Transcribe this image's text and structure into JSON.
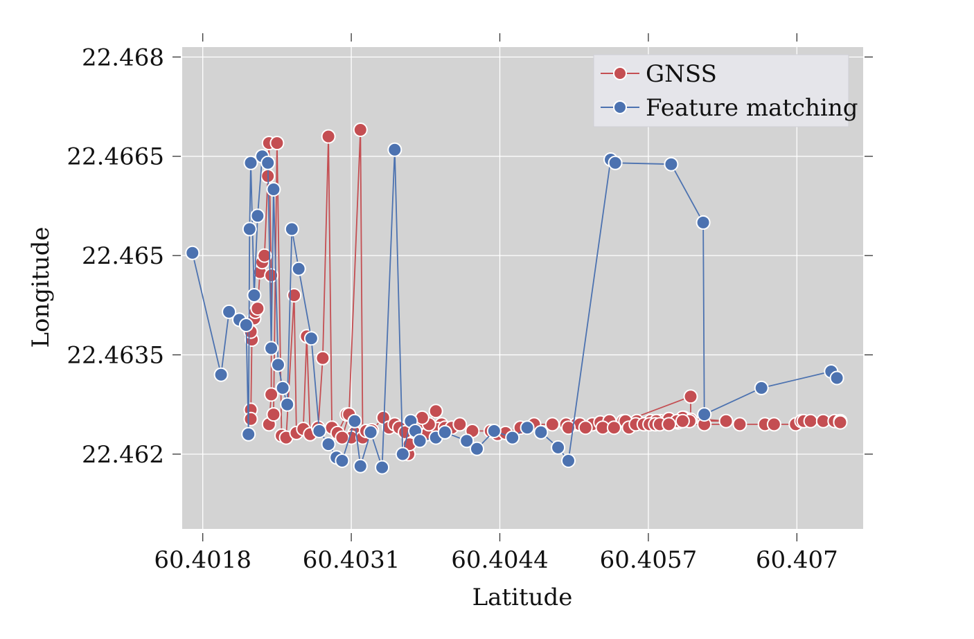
{
  "chart_data": {
    "type": "line",
    "xlabel": "Latitude",
    "ylabel": "Longitude",
    "xlim": [
      60.40162,
      60.40758
    ],
    "ylim": [
      22.46087,
      22.46815
    ],
    "xticks": [
      60.4018,
      60.4031,
      60.4044,
      60.4057,
      60.407
    ],
    "xtick_labels": [
      "60.4018",
      "60.4031",
      "60.4044",
      "60.4057",
      "60.407"
    ],
    "yticks": [
      22.462,
      22.4635,
      22.465,
      22.4665,
      22.468
    ],
    "ytick_labels": [
      "22.462",
      "22.4635",
      "22.465",
      "22.4665",
      "22.468"
    ],
    "grid": true,
    "legend_position": "top-right",
    "colors": {
      "background": "#d3d3d3",
      "grid": "#ffffff"
    },
    "series": [
      {
        "name": "GNSS",
        "color": "#c44e52",
        "points": [
          [
            60.40222,
            22.46267
          ],
          [
            60.40222,
            22.46253
          ],
          [
            60.40223,
            22.46373
          ],
          [
            60.40222,
            22.46385
          ],
          [
            60.40225,
            22.46405
          ],
          [
            60.40226,
            22.46415
          ],
          [
            60.40228,
            22.4642
          ],
          [
            60.4023,
            22.46475
          ],
          [
            60.40232,
            22.4649
          ],
          [
            60.40234,
            22.465
          ],
          [
            60.40237,
            22.4662
          ],
          [
            60.40238,
            22.4667
          ],
          [
            60.4024,
            22.4647
          ],
          [
            60.4024,
            22.4629
          ],
          [
            60.40238,
            22.46245
          ],
          [
            60.40242,
            22.4626
          ],
          [
            60.40245,
            22.4667
          ],
          [
            60.40249,
            22.46228
          ],
          [
            60.40253,
            22.46225
          ],
          [
            60.4026,
            22.4644
          ],
          [
            60.40262,
            22.46232
          ],
          [
            60.40268,
            22.46238
          ],
          [
            60.40271,
            22.46378
          ],
          [
            60.40274,
            22.4623
          ],
          [
            60.40281,
            22.4624
          ],
          [
            60.40285,
            22.46345
          ],
          [
            60.4029,
            22.4668
          ],
          [
            60.40293,
            22.4624
          ],
          [
            60.40298,
            22.46232
          ],
          [
            60.40306,
            22.4626
          ],
          [
            60.40313,
            22.46232
          ],
          [
            60.4031,
            22.46225
          ],
          [
            60.40302,
            22.46225
          ],
          [
            60.40308,
            22.4626
          ],
          [
            60.40318,
            22.4669
          ],
          [
            60.4032,
            22.46225
          ],
          [
            60.40323,
            22.46235
          ],
          [
            60.40328,
            22.46236
          ],
          [
            60.40338,
            22.46255
          ],
          [
            60.40343,
            22.4624
          ],
          [
            60.40348,
            22.46245
          ],
          [
            60.40352,
            22.4624
          ],
          [
            60.40357,
            22.46233
          ],
          [
            60.4036,
            22.462
          ],
          [
            60.40361,
            22.46215
          ],
          [
            60.40368,
            22.46245
          ],
          [
            60.40376,
            22.4623
          ],
          [
            60.40384,
            22.46265
          ],
          [
            60.40389,
            22.46245
          ],
          [
            60.40386,
            22.46238
          ],
          [
            60.40378,
            22.46245
          ],
          [
            60.40372,
            22.46255
          ],
          [
            60.40392,
            22.4624
          ],
          [
            60.40398,
            22.4624
          ],
          [
            60.40405,
            22.46245
          ],
          [
            60.40416,
            22.46235
          ],
          [
            60.40432,
            22.46235
          ],
          [
            60.40438,
            22.4623
          ],
          [
            60.40445,
            22.46232
          ],
          [
            60.40458,
            22.4624
          ],
          [
            60.4047,
            22.46245
          ],
          [
            60.40486,
            22.46245
          ],
          [
            60.40498,
            22.46245
          ],
          [
            60.40507,
            22.46245
          ],
          [
            60.4051,
            22.46245
          ],
          [
            60.40521,
            22.46245
          ],
          [
            60.40528,
            22.46248
          ],
          [
            60.40536,
            22.4625
          ],
          [
            60.40548,
            22.4625
          ],
          [
            60.4056,
            22.4625
          ],
          [
            60.40572,
            22.4625
          ],
          [
            60.4058,
            22.4625
          ],
          [
            60.40588,
            22.46253
          ],
          [
            60.40596,
            22.46248
          ],
          [
            60.406,
            22.4625
          ],
          [
            60.40601,
            22.46255
          ],
          [
            60.40607,
            22.46252
          ],
          [
            60.40607,
            22.46287
          ],
          [
            60.4055,
            22.4625
          ],
          [
            60.40595,
            22.4625
          ],
          [
            60.406,
            22.46255
          ],
          [
            60.40638,
            22.4625
          ],
          [
            60.40606,
            22.4625
          ],
          [
            60.40577,
            22.4625
          ],
          [
            60.40595,
            22.4625
          ],
          [
            60.406,
            22.4625
          ],
          [
            60.405,
            22.4624
          ],
          [
            60.40515,
            22.4624
          ],
          [
            60.4053,
            22.4624
          ],
          [
            60.4054,
            22.4624
          ],
          [
            60.40553,
            22.4624
          ],
          [
            60.40559,
            22.46245
          ],
          [
            60.40566,
            22.46245
          ],
          [
            60.40571,
            22.46245
          ],
          [
            60.40576,
            22.46245
          ],
          [
            60.4058,
            22.46245
          ],
          [
            60.40588,
            22.46245
          ],
          [
            60.40619,
            22.46245
          ],
          [
            60.4065,
            22.46245
          ],
          [
            60.40672,
            22.46245
          ],
          [
            60.4068,
            22.46245
          ],
          [
            60.40699,
            22.46245
          ],
          [
            60.40704,
            22.4625
          ],
          [
            60.40706,
            22.4625
          ],
          [
            60.40712,
            22.4625
          ],
          [
            60.40723,
            22.4625
          ],
          [
            60.40733,
            22.4625
          ],
          [
            60.40738,
            22.4625
          ],
          [
            60.40738,
            22.46248
          ]
        ]
      },
      {
        "name": "Feature matching",
        "color": "#4c72b0",
        "points": [
          [
            60.40171,
            22.46504
          ],
          [
            60.40196,
            22.4632
          ],
          [
            60.40203,
            22.46415
          ],
          [
            60.40212,
            22.46403
          ],
          [
            60.40218,
            22.46395
          ],
          [
            60.4022,
            22.4623
          ],
          [
            60.40221,
            22.4654
          ],
          [
            60.40222,
            22.4664
          ],
          [
            60.40225,
            22.4644
          ],
          [
            60.40228,
            22.4656
          ],
          [
            60.40232,
            22.4665
          ],
          [
            60.40237,
            22.4664
          ],
          [
            60.4024,
            22.4636
          ],
          [
            60.40242,
            22.466
          ],
          [
            60.40246,
            22.46335
          ],
          [
            60.4025,
            22.463
          ],
          [
            60.40254,
            22.46275
          ],
          [
            60.40258,
            22.4654
          ],
          [
            60.40264,
            22.4648
          ],
          [
            60.40275,
            22.46375
          ],
          [
            60.40282,
            22.46235
          ],
          [
            60.4029,
            22.46215
          ],
          [
            60.40297,
            22.46195
          ],
          [
            60.40302,
            22.4619
          ],
          [
            60.40313,
            22.4625
          ],
          [
            60.40318,
            22.46182
          ],
          [
            60.40327,
            22.46233
          ],
          [
            60.40337,
            22.4618
          ],
          [
            60.40348,
            22.4666
          ],
          [
            60.40355,
            22.462
          ],
          [
            60.40362,
            22.4625
          ],
          [
            60.40366,
            22.46235
          ],
          [
            60.4037,
            22.4622
          ],
          [
            60.40384,
            22.46225
          ],
          [
            60.40392,
            22.46233
          ],
          [
            60.40411,
            22.4622
          ],
          [
            60.4042,
            22.46208
          ],
          [
            60.40435,
            22.46235
          ],
          [
            60.40451,
            22.46225
          ],
          [
            60.40464,
            22.4624
          ],
          [
            60.40476,
            22.46233
          ],
          [
            60.40491,
            22.4621
          ],
          [
            60.405,
            22.4619
          ],
          [
            60.40537,
            22.46645
          ],
          [
            60.40541,
            22.4664
          ],
          [
            60.4059,
            22.46638
          ],
          [
            60.40618,
            22.4655
          ],
          [
            60.40619,
            22.4626
          ],
          [
            60.40669,
            22.463
          ],
          [
            60.4073,
            22.46325
          ],
          [
            60.40735,
            22.46315
          ]
        ]
      }
    ]
  }
}
